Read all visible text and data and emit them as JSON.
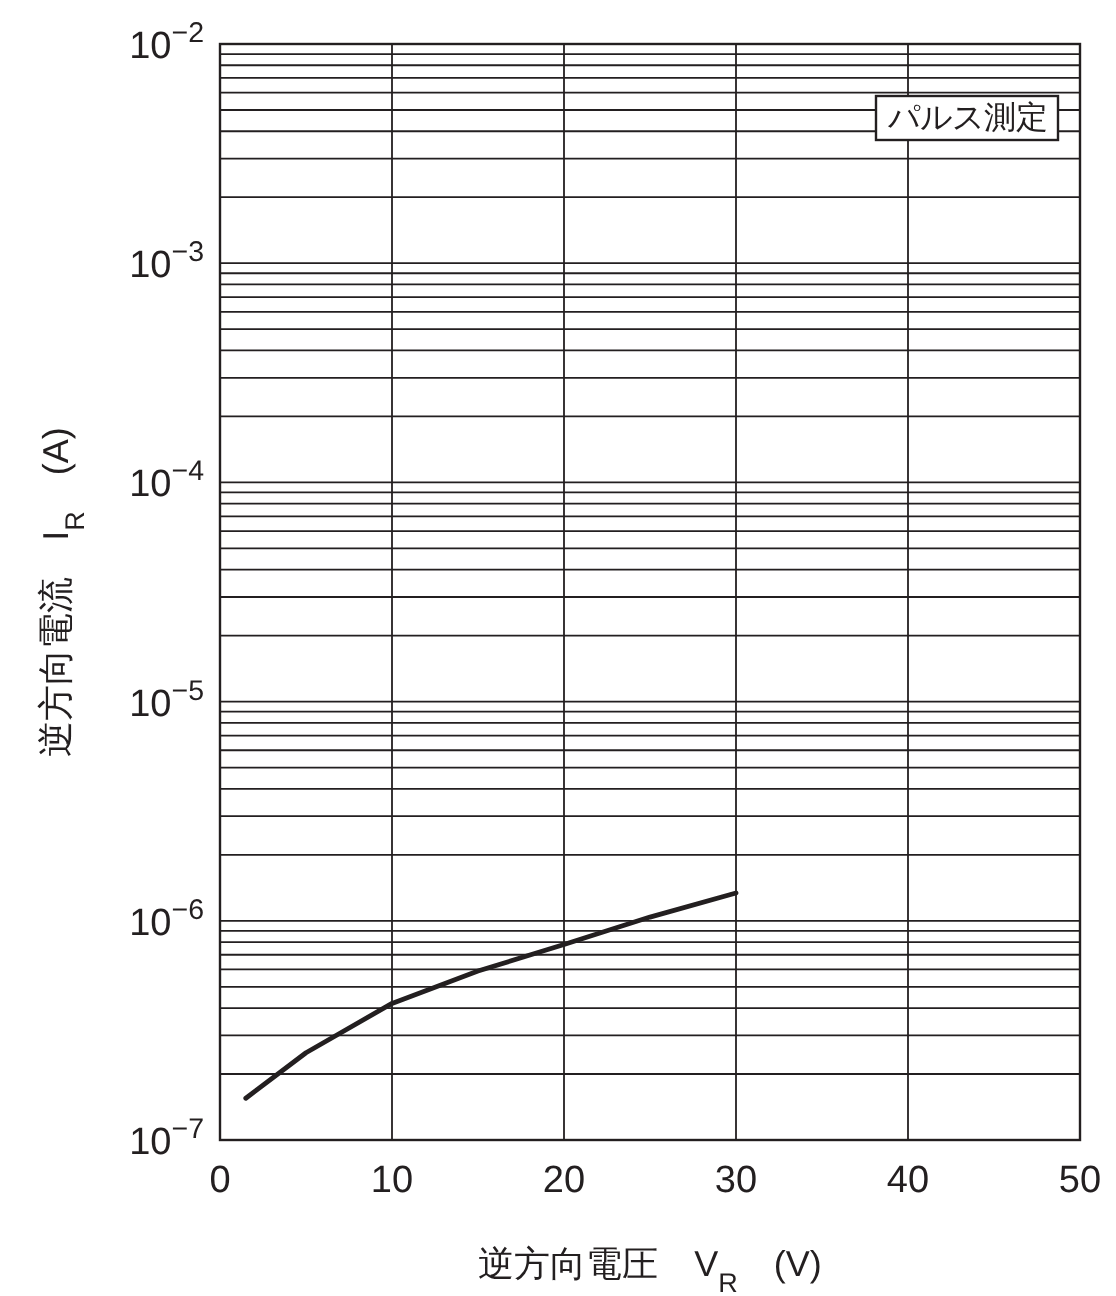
{
  "chart_data": {
    "type": "line",
    "xlabel": "逆方向電圧　V$_{R}$　(V)",
    "ylabel": "逆方向電流　I$_{R}$　(A)",
    "log": true,
    "grid": true,
    "xlim": [
      0,
      50
    ],
    "xticks": [
      0,
      10,
      20,
      30,
      40,
      50
    ],
    "ylim": [
      1e-07,
      0.01
    ],
    "yticks": [
      {
        "value": 1e-07,
        "label": "10$^{−7}$"
      },
      {
        "value": 1e-06,
        "label": "10$^{−6}$"
      },
      {
        "value": 1e-05,
        "label": "10$^{−5}$"
      },
      {
        "value": 0.0001,
        "label": "10$^{−4}$"
      },
      {
        "value": 0.001,
        "label": "10$^{−3}$"
      },
      {
        "value": 0.01,
        "label": "10$^{−2}$"
      }
    ],
    "x": [
      1.5,
      5,
      10,
      15,
      20,
      25,
      30
    ],
    "series": [
      {
        "color": "#231f20",
        "values": [
          1.55e-07,
          2.5e-07,
          4.2e-07,
          5.9e-07,
          7.8e-07,
          1.04e-06,
          1.34e-06
        ]
      }
    ],
    "annotations": [
      "パルス測定"
    ]
  }
}
